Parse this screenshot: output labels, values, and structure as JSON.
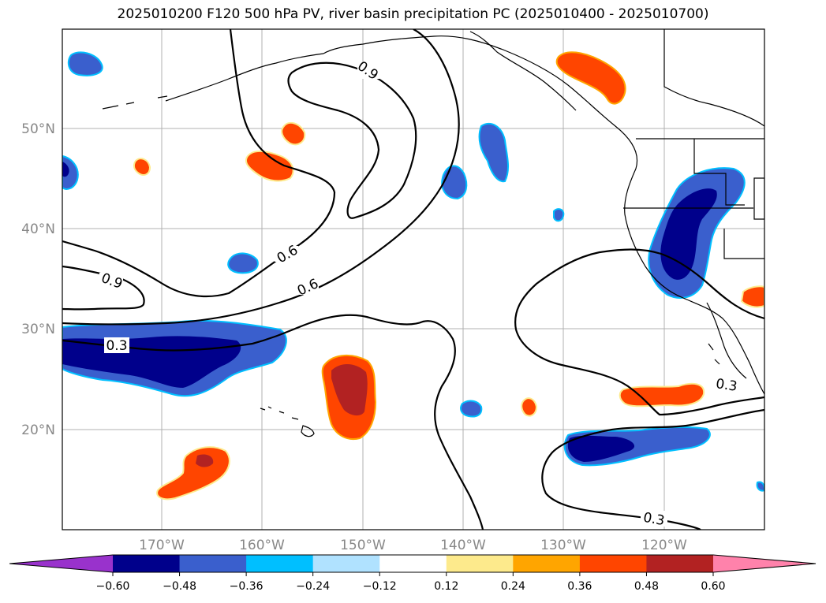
{
  "title": "2025010200 F120 500 hPa PV, river basin precipitation PC (2025010400 - 2025010700)",
  "map": {
    "lat_labels": [
      "50°N",
      "40°N",
      "30°N",
      "20°N"
    ],
    "lon_labels": [
      "170°W",
      "160°W",
      "150°W",
      "140°W",
      "130°W",
      "120°W"
    ],
    "contour_labels": [
      "0.9",
      "0.6",
      "0.9",
      "0.6",
      "0.3",
      "0.3",
      "0.3"
    ]
  },
  "colorbar": {
    "ticks": [
      "−0.60",
      "−0.48",
      "−0.36",
      "−0.24",
      "−0.12",
      "0.12",
      "0.24",
      "0.36",
      "0.48",
      "0.60"
    ],
    "colors": [
      "#9932cc",
      "#00008b",
      "#3a5fcd",
      "#00bfff",
      "#b0e2ff",
      "#ffffff",
      "#fdea8c",
      "#ffa500",
      "#ff4500",
      "#b22222",
      "#ff82ab"
    ]
  }
}
